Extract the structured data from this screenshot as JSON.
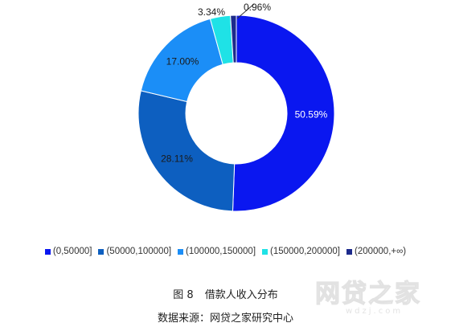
{
  "chart_data": {
    "type": "pie",
    "variant": "donut",
    "title": "",
    "legend_position": "bottom",
    "slices": [
      {
        "label": "(0,50000]",
        "value": 50.59,
        "display": "50.59%",
        "color": "#0a17f0"
      },
      {
        "label": "(50000,100000]",
        "value": 28.11,
        "display": "28.11%",
        "color": "#0d5fc0"
      },
      {
        "label": "(100000,150000]",
        "value": 17.0,
        "display": "17.00%",
        "color": "#1b8ef7"
      },
      {
        "label": "(150000,200000]",
        "value": 3.34,
        "display": "3.34%",
        "color": "#1fe2e6"
      },
      {
        "label": "(200000,+∞)",
        "value": 0.96,
        "display": "0.96%",
        "color": "#1c2a8c"
      }
    ]
  },
  "figure": {
    "number": "图 8",
    "caption": "借款人收入分布"
  },
  "source": "数据来源：网贷之家研究中心",
  "watermark": {
    "main": "网贷之家",
    "sub": "wdzj.com"
  }
}
